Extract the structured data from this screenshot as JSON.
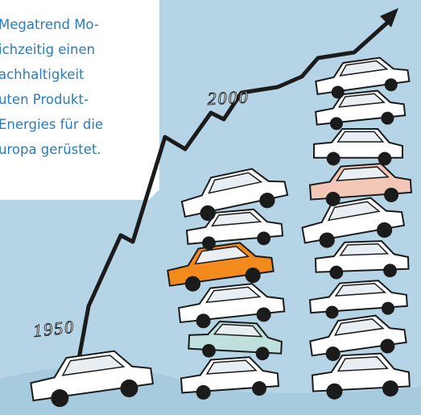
{
  "text_box": {
    "lines": [
      "Megatrend Mo-",
      "ichzeitig einen",
      "achhaltigkeit",
      "uten Produkt-",
      "Energies für die",
      "uropa gerüstet."
    ]
  },
  "illustration": {
    "year_labels": [
      "2000",
      "1950"
    ]
  }
}
